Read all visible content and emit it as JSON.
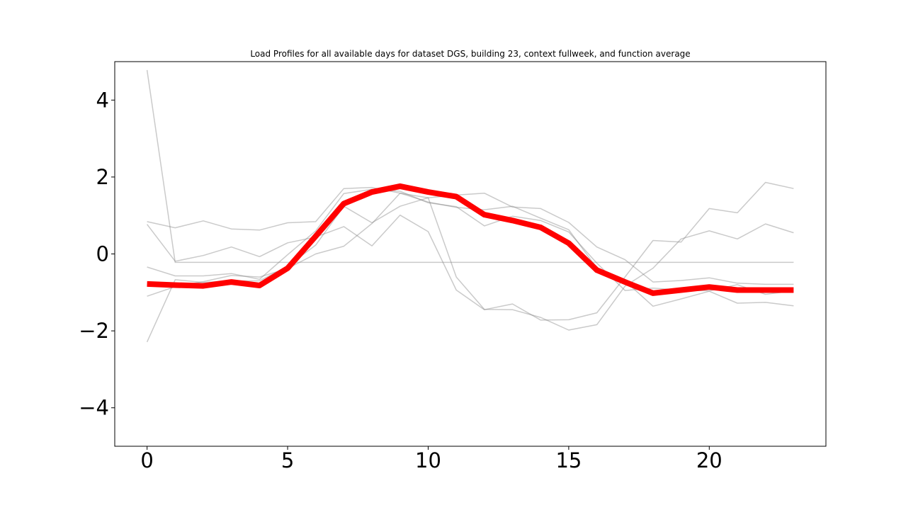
{
  "chart_data": {
    "type": "line",
    "title": "Load Profiles for all available days for dataset DGS, building 23, context fullweek, and function average",
    "xlabel": "",
    "ylabel": "",
    "xlim": [
      -1.15,
      24.15
    ],
    "ylim": [
      -5,
      5
    ],
    "x": [
      0,
      1,
      2,
      3,
      4,
      5,
      6,
      7,
      8,
      9,
      10,
      11,
      12,
      13,
      14,
      15,
      16,
      17,
      18,
      19,
      20,
      21,
      22,
      23
    ],
    "x_ticks": [
      0,
      5,
      10,
      15,
      20
    ],
    "y_ticks": [
      -4,
      -2,
      0,
      2,
      4
    ],
    "x_tick_labels": [
      "0",
      "5",
      "10",
      "15",
      "20"
    ],
    "y_tick_labels": [
      "−4",
      "−2",
      "0",
      "2",
      "4"
    ],
    "grid": false,
    "colors": {
      "days": "#808080",
      "average": "#ff0000"
    },
    "series": [
      {
        "role": "day",
        "values": [
          4.78,
          -0.22,
          -0.22,
          -0.22,
          -0.22,
          -0.22,
          -0.22,
          -0.22,
          -0.22,
          -0.22,
          -0.22,
          -0.22,
          -0.22,
          -0.22,
          -0.22,
          -0.22,
          -0.22,
          -0.22,
          -0.22,
          -0.22,
          -0.22,
          -0.22,
          -0.22,
          -0.22
        ]
      },
      {
        "role": "day",
        "values": [
          0.84,
          0.68,
          0.86,
          0.65,
          0.62,
          0.81,
          0.84,
          1.7,
          1.73,
          1.58,
          1.35,
          1.21,
          1.15,
          1.24,
          0.93,
          0.63,
          -0.37,
          -0.7,
          -1.36,
          -1.17,
          -0.97,
          -1.28,
          -1.26,
          -1.35
        ]
      },
      {
        "role": "day",
        "values": [
          -0.34,
          -0.57,
          -0.57,
          -0.51,
          -0.66,
          -0.02,
          0.6,
          1.57,
          1.68,
          1.63,
          1.33,
          1.23,
          0.73,
          0.98,
          0.87,
          0.57,
          -0.24,
          -0.95,
          -0.89,
          -0.94,
          -0.96,
          -0.8,
          -1.05,
          -0.96
        ]
      },
      {
        "role": "day",
        "values": [
          0.77,
          -0.19,
          -0.04,
          0.18,
          -0.07,
          0.29,
          0.44,
          0.71,
          0.21,
          1.01,
          0.58,
          -0.94,
          -1.45,
          -1.3,
          -1.72,
          -1.71,
          -1.53,
          -0.6,
          0.35,
          0.31,
          1.18,
          1.07,
          1.86,
          1.7
        ]
      },
      {
        "role": "day",
        "values": [
          -2.29,
          -0.67,
          -0.74,
          -0.7,
          -0.7,
          -0.32,
          0.23,
          1.24,
          0.81,
          1.24,
          1.46,
          1.53,
          1.58,
          1.22,
          1.18,
          0.82,
          0.18,
          -0.15,
          -0.73,
          -0.69,
          -0.62,
          -0.76,
          -0.79,
          -0.79
        ]
      },
      {
        "role": "day",
        "values": [
          -1.1,
          -0.85,
          -0.72,
          -0.56,
          -0.6,
          -0.38,
          0.0,
          0.2,
          0.79,
          1.58,
          1.46,
          -0.6,
          -1.44,
          -1.45,
          -1.65,
          -1.98,
          -1.84,
          -0.84,
          -0.37,
          0.39,
          0.6,
          0.39,
          0.78,
          0.55
        ]
      },
      {
        "role": "average",
        "values": [
          -0.78,
          -0.81,
          -0.83,
          -0.73,
          -0.82,
          -0.37,
          0.46,
          1.31,
          1.61,
          1.76,
          1.61,
          1.49,
          1.02,
          0.87,
          0.69,
          0.28,
          -0.42,
          -0.73,
          -1.02,
          -0.94,
          -0.86,
          -0.94,
          -0.94,
          -0.94
        ]
      }
    ]
  }
}
